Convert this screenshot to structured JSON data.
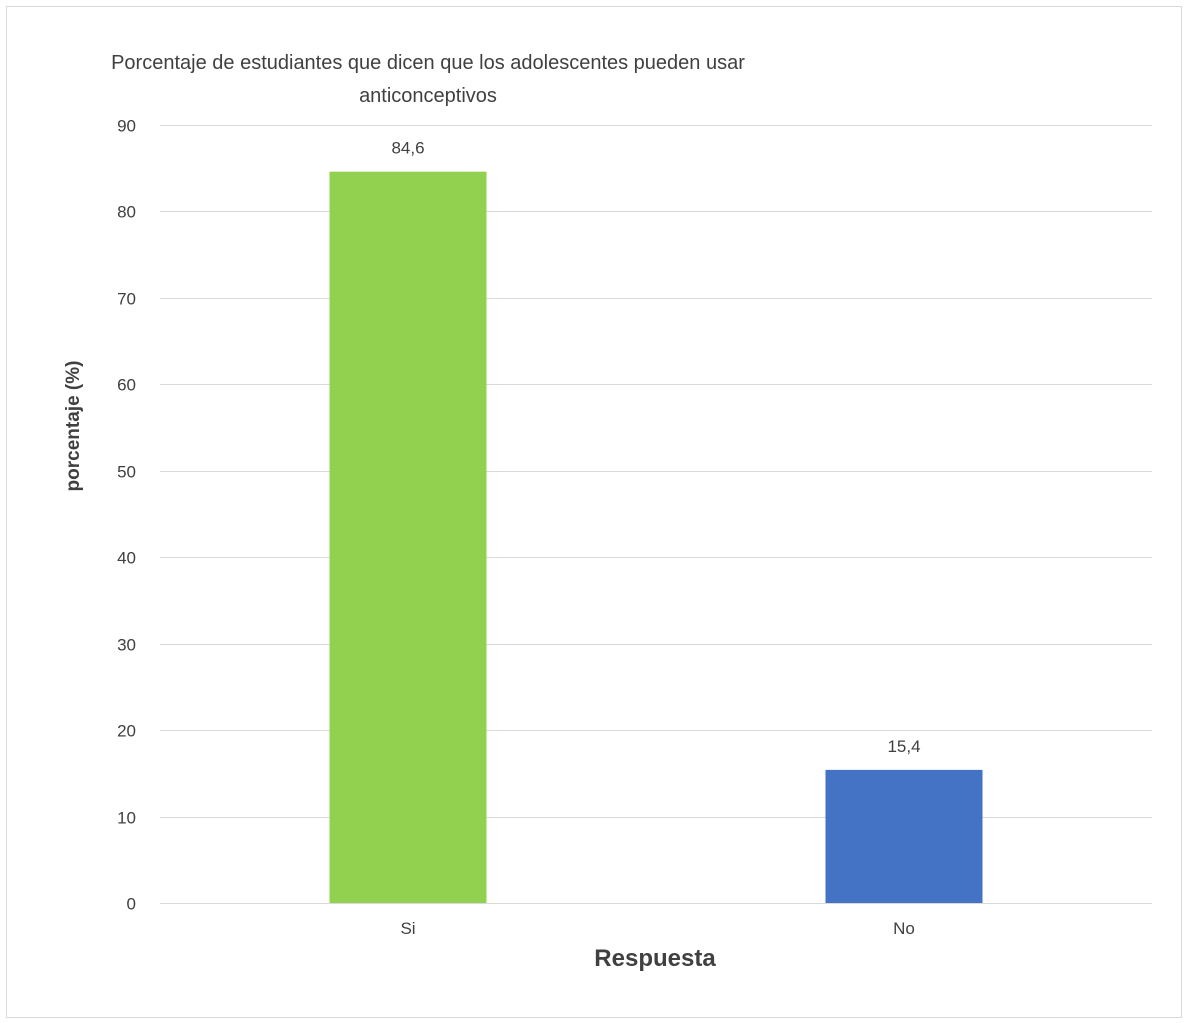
{
  "chart_data": {
    "type": "bar",
    "title": "Porcentaje de estudiantes que dicen que los adolescentes pueden usar anticonceptivos",
    "title_lines": [
      "Porcentaje de estudiantes que dicen que los adolescentes pueden usar",
      "anticonceptivos"
    ],
    "xlabel": "Respuesta",
    "ylabel": "porcentaje (%)",
    "categories": [
      "Si",
      "No"
    ],
    "values": [
      84.6,
      15.4
    ],
    "value_labels": [
      "84,6",
      "15,4"
    ],
    "bar_colors": [
      "#92d050",
      "#4472c4"
    ],
    "ylim": [
      0,
      90
    ],
    "yticks": [
      0,
      10,
      20,
      30,
      40,
      50,
      60,
      70,
      80,
      90
    ],
    "grid": true,
    "legend": "none"
  }
}
